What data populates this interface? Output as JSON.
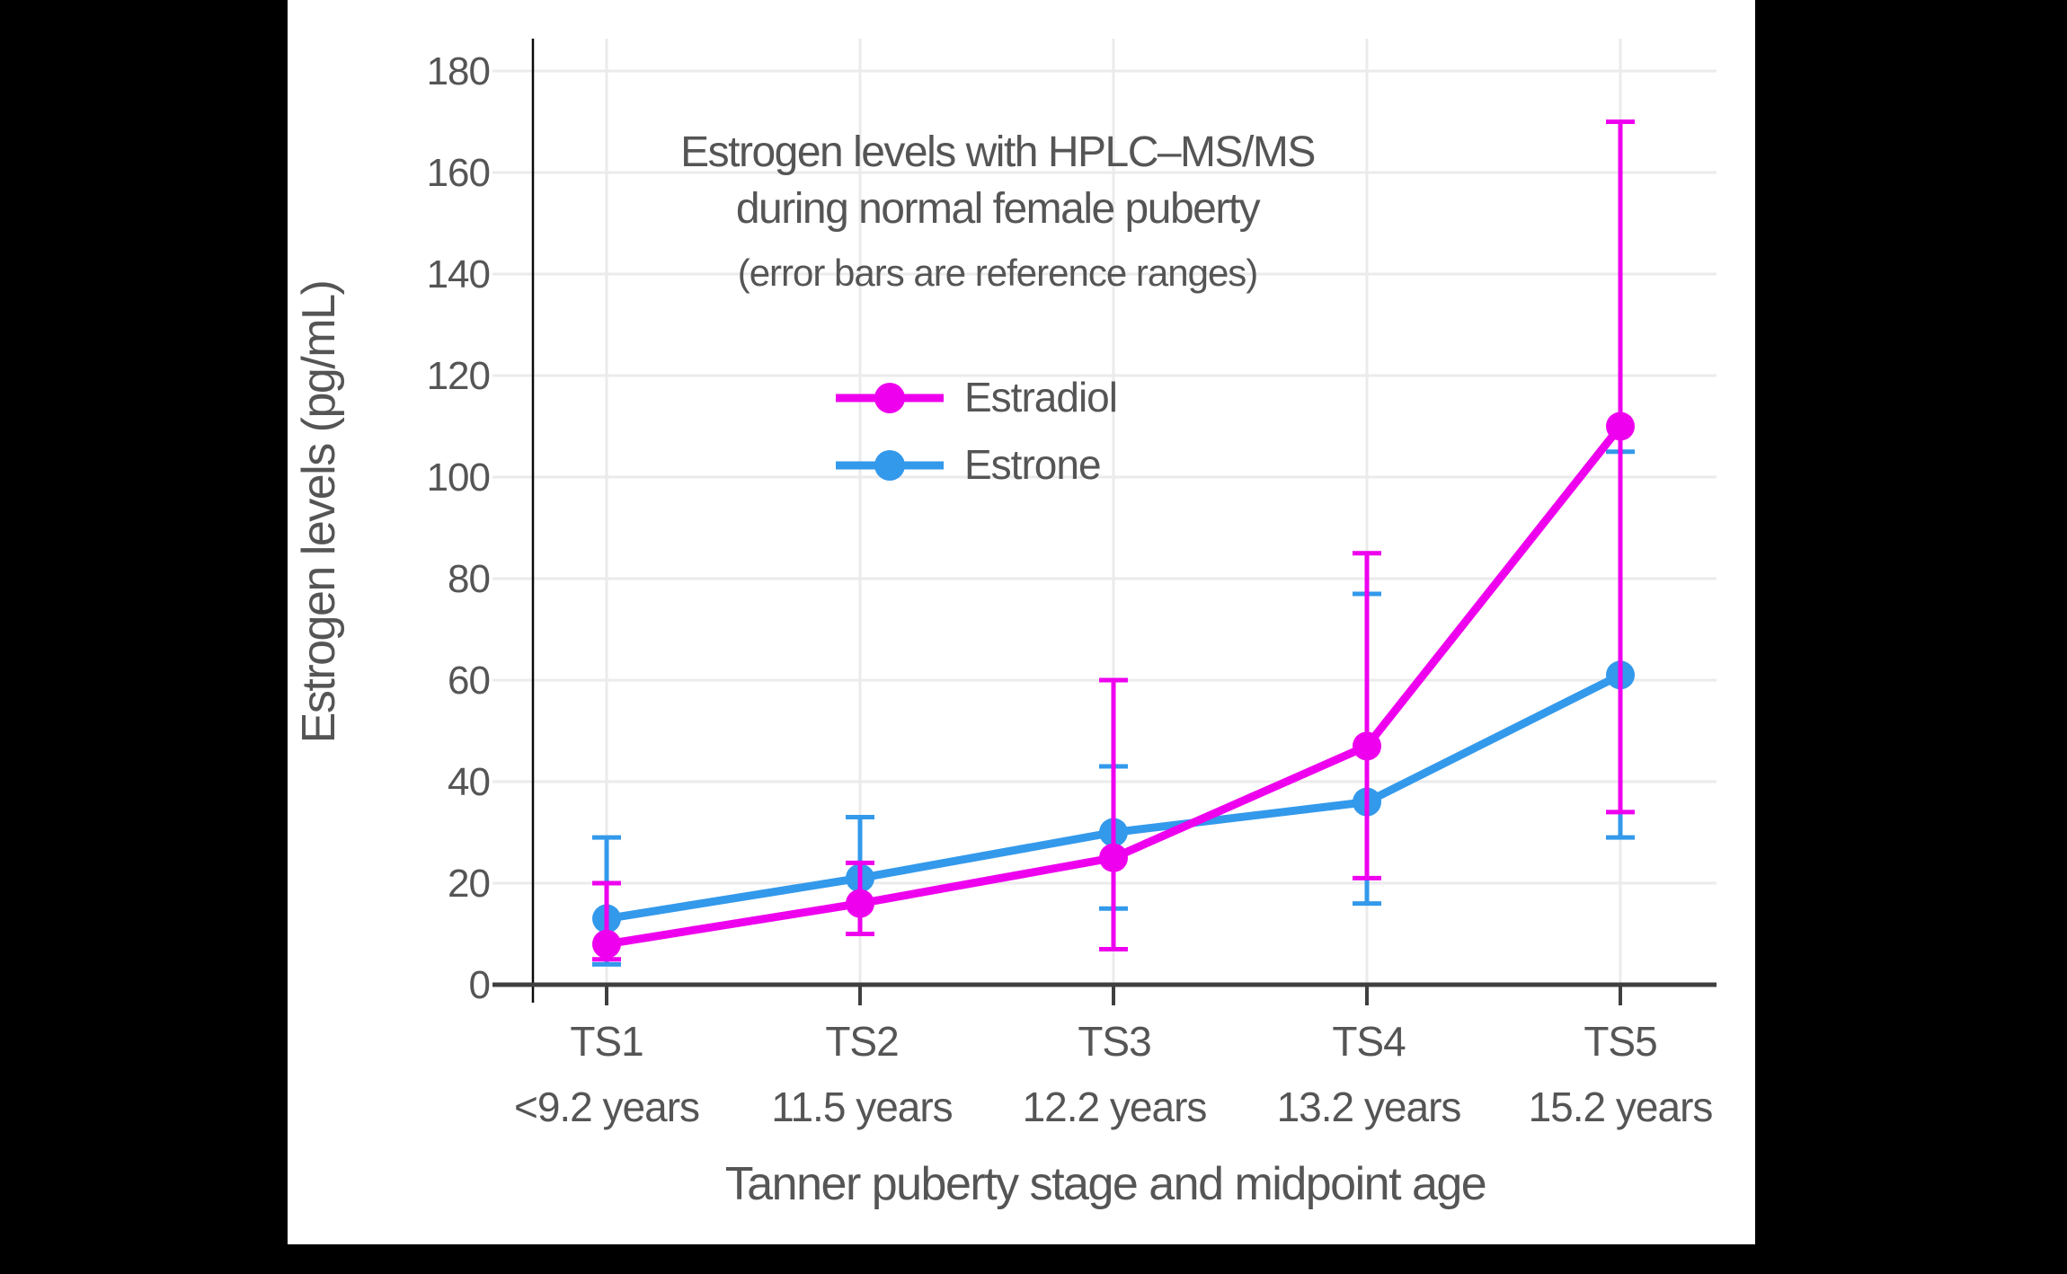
{
  "title": {
    "line1": "Estrogen levels with HPLC–MS/MS",
    "line2": "during normal female puberty",
    "subtitle": "(error bars are reference ranges)"
  },
  "y_axis": {
    "label": "Estrogen levels (pg/mL)",
    "ticks": [
      "0",
      "20",
      "40",
      "60",
      "80",
      "100",
      "120",
      "140",
      "160",
      "180"
    ]
  },
  "x_axis": {
    "label": "Tanner puberty stage and midpoint age",
    "stages": [
      "TS1",
      "TS2",
      "TS3",
      "TS4",
      "TS5"
    ],
    "ages": [
      "<9.2 years",
      "11.5 years",
      "12.2 years",
      "13.2 years",
      "15.2 years"
    ]
  },
  "legend": {
    "items": [
      {
        "label": "Estradiol",
        "color": "#EE00EE"
      },
      {
        "label": "Estrone",
        "color": "#3399EB"
      }
    ]
  },
  "colors": {
    "estradiol": "#EE00EE",
    "estrone": "#3399EB",
    "grid": "#EBEBEB",
    "x_axis_line": "#3F3F3F",
    "y_axis_line": "#0A0A0A",
    "text": "#555555",
    "background": "#FFFFFF",
    "page_background": "#000000"
  },
  "chart_data": {
    "type": "line",
    "title": "Estrogen levels with HPLC–MS/MS during normal female puberty",
    "subtitle": "(error bars are reference ranges)",
    "xlabel": "Tanner puberty stage and midpoint age",
    "ylabel": "Estrogen levels (pg/mL)",
    "categories": [
      "TS1",
      "TS2",
      "TS3",
      "TS4",
      "TS5"
    ],
    "category_ages": [
      "<9.2 years",
      "11.5 years",
      "12.2 years",
      "13.2 years",
      "15.2 years"
    ],
    "ylim": [
      0,
      190
    ],
    "y_tick_step": 20,
    "grid": true,
    "legend_position": "upper-left-inside",
    "error_bar_meaning": "reference ranges",
    "series": [
      {
        "name": "Estradiol",
        "color": "#EE00EE",
        "values": [
          8,
          16,
          25,
          47,
          110
        ],
        "error_low": [
          5,
          10,
          7,
          21,
          34
        ],
        "error_high": [
          20,
          24,
          60,
          85,
          170
        ],
        "z_order": 2
      },
      {
        "name": "Estrone",
        "color": "#3399EB",
        "values": [
          13,
          21,
          30,
          36,
          61
        ],
        "error_low": [
          4,
          10,
          15,
          16,
          29
        ],
        "error_high": [
          29,
          33,
          43,
          77,
          105
        ],
        "z_order": 1
      }
    ]
  }
}
